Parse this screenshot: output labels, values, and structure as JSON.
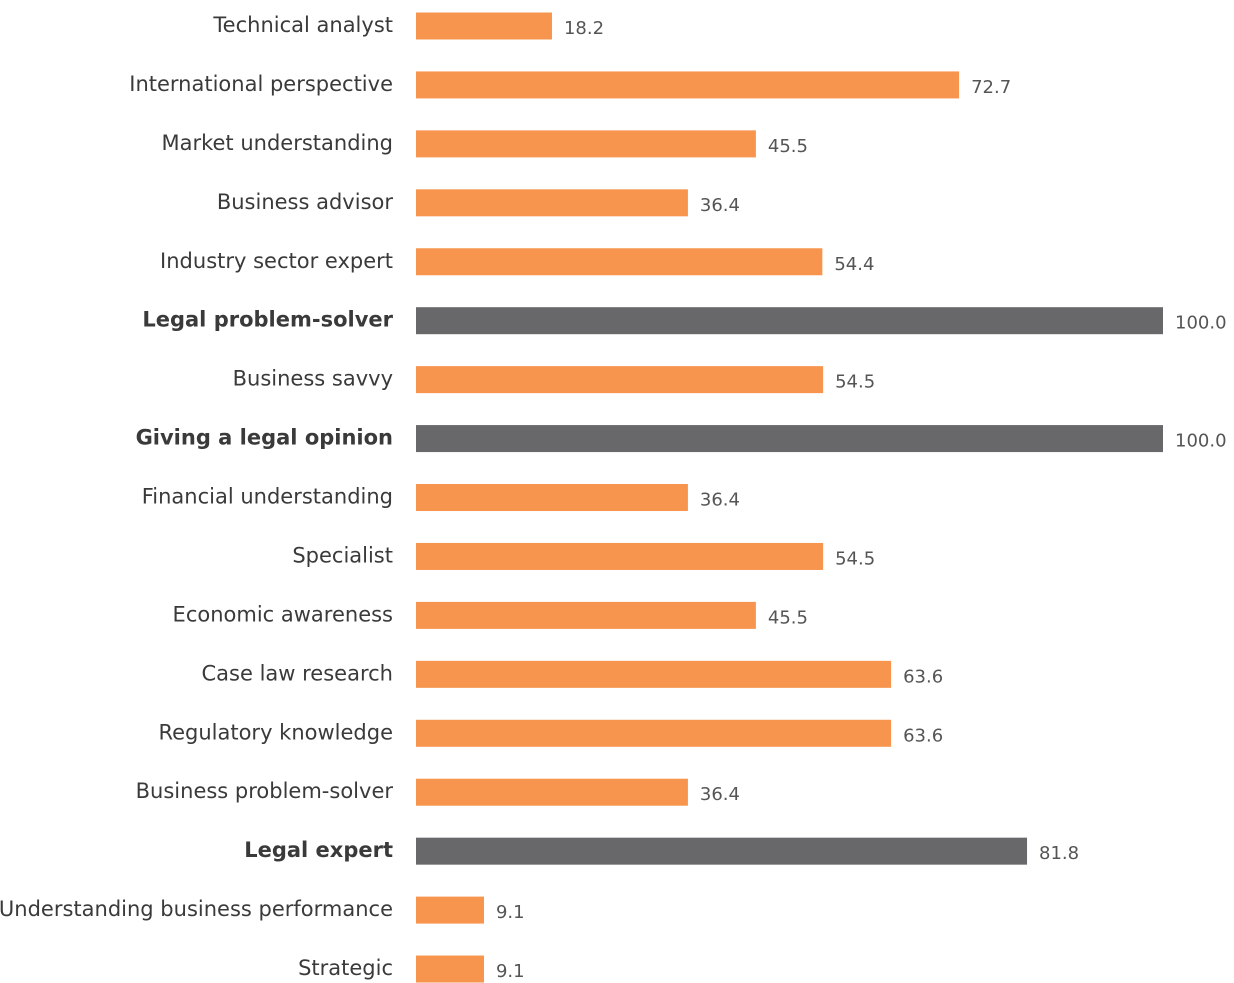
{
  "chart_data": {
    "type": "hbar",
    "categories": [
      "Technical analyst",
      "International perspective",
      "Market understanding",
      "Business advisor",
      "Industry sector expert",
      "Legal problem-solver",
      "Business savvy",
      "Giving a legal opinion",
      "Financial understanding",
      "Specialist",
      "Economic awareness",
      "Case law research",
      "Regulatory knowledge",
      "Business problem-solver",
      "Legal expert",
      "Understanding business performance",
      "Strategic"
    ],
    "values": [
      18.2,
      72.7,
      45.5,
      36.4,
      54.4,
      100,
      54.5,
      100,
      36.4,
      54.5,
      45.5,
      63.6,
      63.6,
      36.4,
      81.8,
      9.1,
      9.1
    ],
    "value_labels": [
      "18.2",
      "72.7",
      "45.5",
      "36.4",
      "54.4",
      "100.0",
      "54.5",
      "100.0",
      "36.4",
      "54.5",
      "45.5",
      "63.6",
      "63.6",
      "36.4",
      "81.8",
      "9.1",
      "9.1"
    ],
    "colors": [
      "#f7944d",
      "#f7944d",
      "#f7944d",
      "#f7944d",
      "#f7944d",
      "#68686a",
      "#f7944d",
      "#68686a",
      "#f7944d",
      "#f7944d",
      "#f7944d",
      "#f7944d",
      "#f7944d",
      "#f7944d",
      "#68686a",
      "#f7944d",
      "#f7944d"
    ],
    "highlight_color": "#68686a",
    "xlim": [
      0,
      100
    ]
  }
}
